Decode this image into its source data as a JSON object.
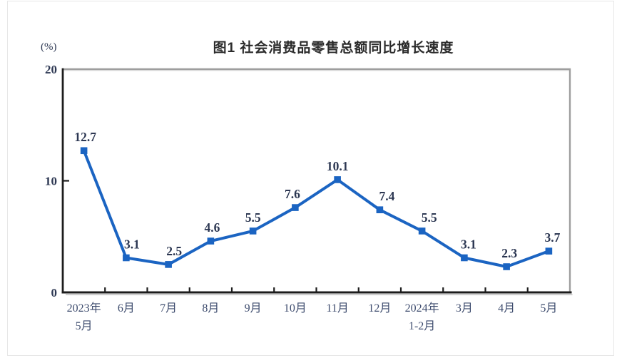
{
  "page": {
    "unit_label": "(%)"
  },
  "chart_data": {
    "type": "line",
    "title": "图1 社会消费品零售总额同比增长速度",
    "ylabel": "(%)",
    "xlabel": "",
    "categories": [
      "2023年\n5月",
      "6月",
      "7月",
      "8月",
      "9月",
      "10月",
      "11月",
      "12月",
      "2024年\n1-2月",
      "3月",
      "4月",
      "5月"
    ],
    "values": [
      12.7,
      3.1,
      2.5,
      4.6,
      5.5,
      7.6,
      10.1,
      7.4,
      5.5,
      3.1,
      2.3,
      3.7
    ],
    "data_labels": [
      "12.7",
      "3.1",
      "2.5",
      "4.6",
      "5.5",
      "7.6",
      "10.1",
      "7.4",
      "5.5",
      "3.1",
      "2.3",
      "3.7"
    ],
    "ylim": [
      0,
      20
    ],
    "yticks": [
      0,
      10,
      20
    ],
    "grid": false,
    "legend": "none",
    "marker": "square",
    "colors": {
      "line": "#1b64c2",
      "marker_fill": "#1b64c2",
      "data_label": "#2c3752",
      "axis_tick_label": "#3e4c6e",
      "axis": "#1c1c1c",
      "frame": "#9e9e9e",
      "frame_shadow": "#c2c2c2",
      "title": "#2b2b2b"
    }
  }
}
